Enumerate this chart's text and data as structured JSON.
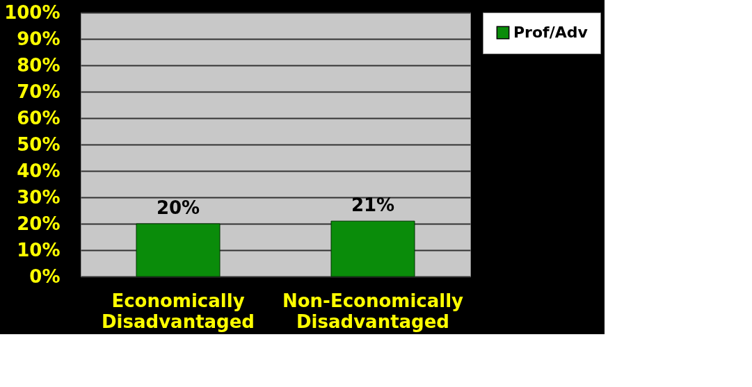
{
  "chart_data": {
    "type": "bar",
    "categories": [
      "Economically Disadvantaged",
      "Non-Economically Disadvantaged"
    ],
    "series": [
      {
        "name": "Prof/Adv",
        "color": "#0a8c0a",
        "values": [
          20,
          21
        ],
        "value_labels": [
          "20%",
          "21%"
        ]
      }
    ],
    "ylim": [
      0,
      100
    ],
    "yticks": [
      {
        "value": 0,
        "label": "0%"
      },
      {
        "value": 10,
        "label": "10%"
      },
      {
        "value": 20,
        "label": "20%"
      },
      {
        "value": 30,
        "label": "30%"
      },
      {
        "value": 40,
        "label": "40%"
      },
      {
        "value": 50,
        "label": "50%"
      },
      {
        "value": 60,
        "label": "60%"
      },
      {
        "value": 70,
        "label": "70%"
      },
      {
        "value": 80,
        "label": "80%"
      },
      {
        "value": 90,
        "label": "90%"
      },
      {
        "value": 100,
        "label": "100%"
      }
    ],
    "grid": "y",
    "legend": "right"
  }
}
